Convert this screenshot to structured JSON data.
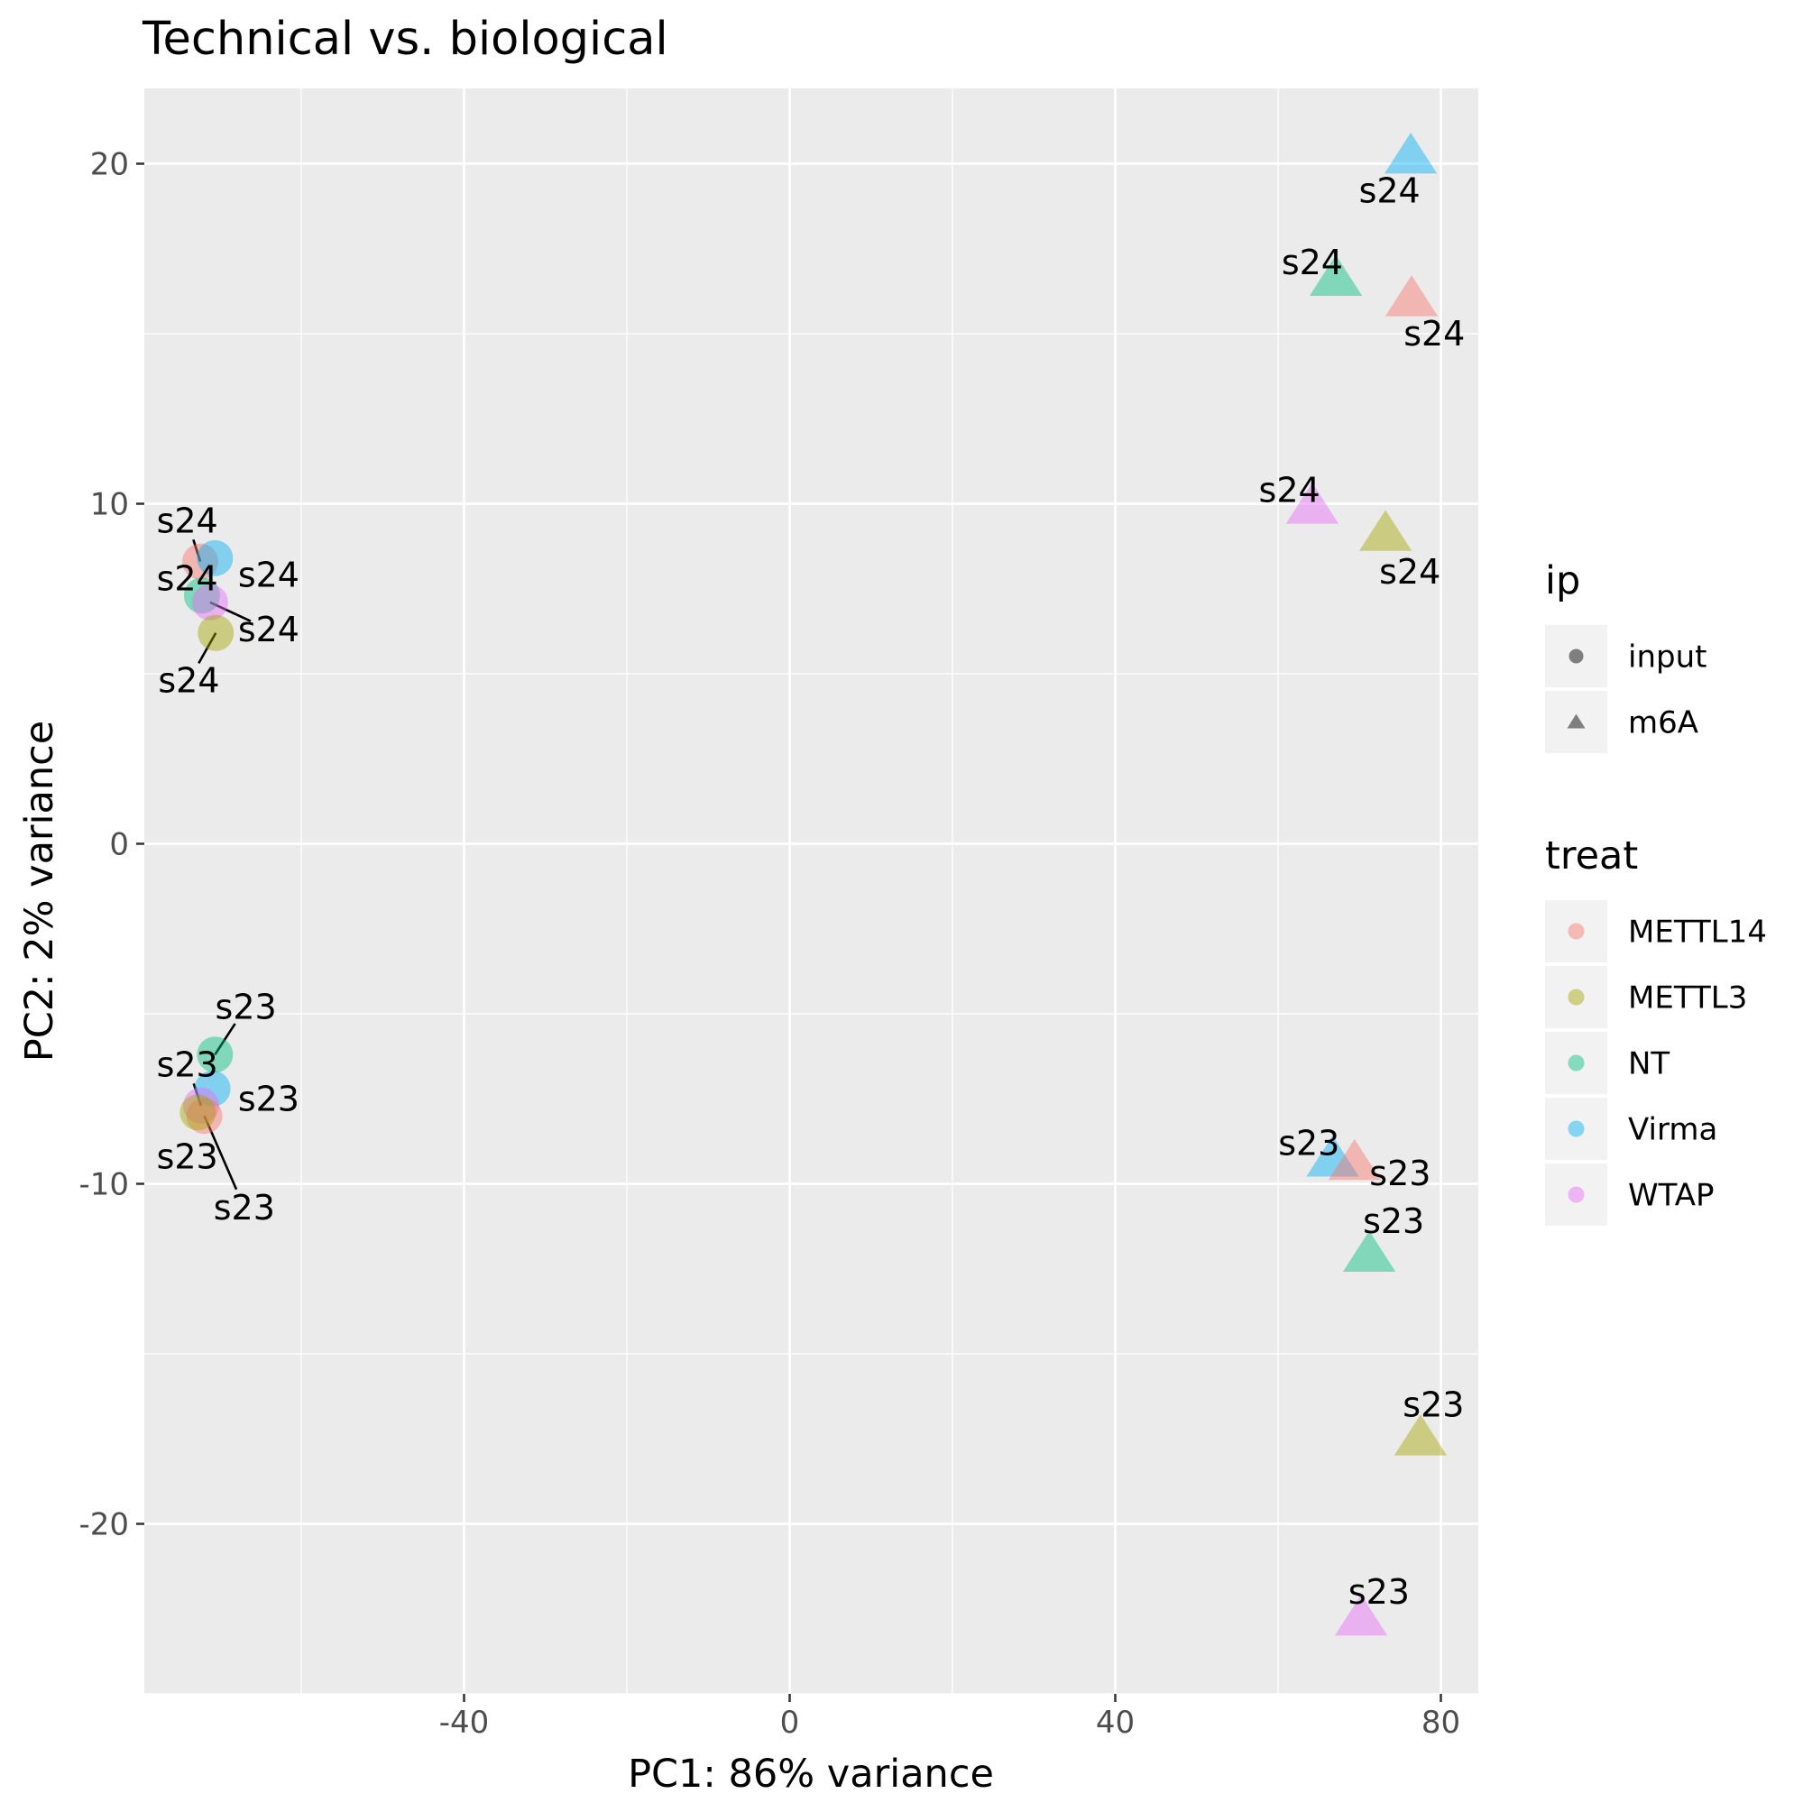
{
  "chart_data": {
    "type": "scatter",
    "title": "Technical vs. biological",
    "xlabel": "PC1: 86% variance",
    "ylabel": "PC2: 2% variance",
    "xlim": [
      -80,
      85
    ],
    "ylim": [
      -25,
      22
    ],
    "x_ticks": [
      -40,
      0,
      40,
      80
    ],
    "y_ticks": [
      -20,
      -10,
      0,
      10,
      20
    ],
    "grid": true,
    "legend_placement": "right",
    "colors": {
      "METTL14": "#F8766D",
      "METTL3": "#A3A500",
      "NT": "#00BF7D",
      "Virma": "#00B0F6",
      "WTAP": "#E76BF3"
    },
    "legends": [
      {
        "title": "ip",
        "items": [
          {
            "label": "input",
            "shape": "circle"
          },
          {
            "label": "m6A",
            "shape": "triangle"
          }
        ]
      },
      {
        "title": "treat",
        "items": [
          {
            "label": "METTL14",
            "color": "#F8766D"
          },
          {
            "label": "METTL3",
            "color": "#A3A500"
          },
          {
            "label": "NT",
            "color": "#00BF7D"
          },
          {
            "label": "Virma",
            "color": "#00B0F6"
          },
          {
            "label": "WTAP",
            "color": "#E76BF3"
          }
        ]
      }
    ],
    "points": [
      {
        "treat": "METTL14",
        "ip": "input",
        "x": -72.4,
        "y": 8.3,
        "label": "s24",
        "lx": -74.0,
        "ly": 9.5,
        "leader": true
      },
      {
        "treat": "Virma",
        "ip": "input",
        "x": -70.6,
        "y": 8.4,
        "label": "s24",
        "lx": -64.0,
        "ly": 7.9,
        "leader": false
      },
      {
        "treat": "NT",
        "ip": "input",
        "x": -72.2,
        "y": 7.3,
        "label": "s24",
        "lx": -74.0,
        "ly": 7.8,
        "leader": false
      },
      {
        "treat": "WTAP",
        "ip": "input",
        "x": -71.2,
        "y": 7.1,
        "label": "s24",
        "lx": -64.0,
        "ly": 6.3,
        "leader": true
      },
      {
        "treat": "METTL3",
        "ip": "input",
        "x": -70.5,
        "y": 6.2,
        "label": "s24",
        "lx": -73.8,
        "ly": 4.8,
        "leader": true
      },
      {
        "treat": "NT",
        "ip": "input",
        "x": -70.6,
        "y": -6.2,
        "label": "s23",
        "lx": -66.8,
        "ly": -4.8,
        "leader": true
      },
      {
        "treat": "Virma",
        "ip": "input",
        "x": -70.9,
        "y": -7.2,
        "label": "s23",
        "lx": -64.0,
        "ly": -7.5,
        "leader": false
      },
      {
        "treat": "WTAP",
        "ip": "input",
        "x": -72.3,
        "y": -7.7,
        "label": "s23",
        "lx": -74.0,
        "ly": -6.5,
        "leader": true
      },
      {
        "treat": "METTL14",
        "ip": "input",
        "x": -71.9,
        "y": -8.0,
        "label": "s23",
        "lx": -67.0,
        "ly": -10.7,
        "leader": true
      },
      {
        "treat": "METTL3",
        "ip": "input",
        "x": -72.7,
        "y": -7.9,
        "label": "s23",
        "lx": -74.0,
        "ly": -9.2,
        "leader": false
      },
      {
        "treat": "Virma",
        "ip": "m6A",
        "x": 76.3,
        "y": 20.2,
        "label": "s24",
        "lx": 73.7,
        "ly": 19.2,
        "leader": false
      },
      {
        "treat": "NT",
        "ip": "m6A",
        "x": 67.1,
        "y": 16.6,
        "label": "s24",
        "lx": 64.2,
        "ly": 17.1,
        "leader": false
      },
      {
        "treat": "METTL14",
        "ip": "m6A",
        "x": 76.4,
        "y": 16.0,
        "label": "s24",
        "lx": 79.2,
        "ly": 15.0,
        "leader": false
      },
      {
        "treat": "WTAP",
        "ip": "m6A",
        "x": 64.2,
        "y": 9.9,
        "label": "s24",
        "lx": 61.4,
        "ly": 10.4,
        "leader": false
      },
      {
        "treat": "METTL3",
        "ip": "m6A",
        "x": 73.2,
        "y": 9.1,
        "label": "s24",
        "lx": 76.2,
        "ly": 8.0,
        "leader": false
      },
      {
        "treat": "Virma",
        "ip": "m6A",
        "x": 66.7,
        "y": -9.3,
        "label": "s23",
        "lx": 63.8,
        "ly": -8.8,
        "leader": false
      },
      {
        "treat": "METTL14",
        "ip": "m6A",
        "x": 69.4,
        "y": -9.4,
        "label": "s23",
        "lx": 75.0,
        "ly": -9.7,
        "leader": false
      },
      {
        "treat": "NT",
        "ip": "m6A",
        "x": 71.2,
        "y": -12.1,
        "label": "s23",
        "lx": 74.2,
        "ly": -11.1,
        "leader": false
      },
      {
        "treat": "METTL3",
        "ip": "m6A",
        "x": 77.5,
        "y": -17.5,
        "label": "s23",
        "lx": 79.1,
        "ly": -16.5,
        "leader": false
      },
      {
        "treat": "WTAP",
        "ip": "m6A",
        "x": 70.2,
        "y": -22.8,
        "label": "s23",
        "lx": 72.4,
        "ly": -22.0,
        "leader": false
      }
    ]
  }
}
